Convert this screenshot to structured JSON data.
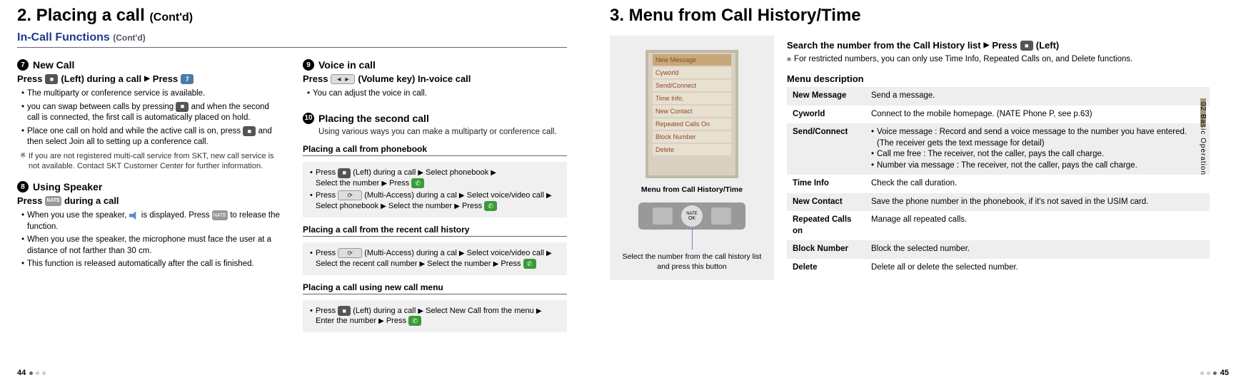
{
  "left": {
    "h2": "2. Placing a call",
    "h2cont": "(Cont'd)",
    "sub": "In-Call Functions",
    "subcont": "(Cont'd)",
    "s7": {
      "num": "7",
      "title": "New Call",
      "step_a": "Press",
      "step_b": "(Left) during a call",
      "step_c": "Press",
      "b1": "The multiparty or conference service is available.",
      "b2a": "you can swap between calls by pressing",
      "b2b": "and when the second call is connected, the first call is automatically placed on hold.",
      "b3a": "Place one call on hold and while the active call is on, press",
      "b3b": "and then select Join all to setting up a conference call.",
      "note": "If you are not registered multi-call service from SKT, new call service is not available. Contact SKT Customer Center for further information."
    },
    "s8": {
      "num": "8",
      "title": "Using Speaker",
      "step_a": "Press",
      "step_b": "during a call",
      "b1a": "When you use the speaker,",
      "b1b": "is displayed. Press",
      "b1c": "to release the function.",
      "b2": "When you use the speaker, the microphone must face the user at a distance of not farther than 30 cm.",
      "b3": "This function is released automatically after the call is finished."
    },
    "s9": {
      "num": "9",
      "title": "Voice in call",
      "step_a": "Press",
      "step_b": "(Volume key) In-voice call",
      "b1": "You can adjust the voice in call."
    },
    "s10": {
      "num": "10",
      "title": "Placing the second call",
      "light": "Using various ways you can make a multiparty or conference call.",
      "box1h": "Placing a call from phonebook",
      "box1": {
        "l1a": "Press",
        "l1b": "(Left) during a call",
        "l1c": "Select phonebook",
        "l1d": "Select the number",
        "l1e": "Press",
        "l2a": "Press",
        "l2b": "(Multi-Access) during a cal",
        "l2c": "Select voice/video call",
        "l2d": "Select phonebook",
        "l2e": "Select the number",
        "l2f": "Press"
      },
      "box2h": "Placing a call from the recent call history",
      "box2": {
        "l1a": "Press",
        "l1b": "(Multi-Access) during a cal",
        "l1c": "Select voice/video call",
        "l1d": "Select the recent call number",
        "l1e": "Select the number",
        "l1f": "Press"
      },
      "box3h": "Placing a call using new call menu",
      "box3": {
        "l1a": "Press",
        "l1b": "(Left) during a call",
        "l1c": "Select New Call from the menu",
        "l1d": "Enter the number",
        "l1e": "Press"
      }
    }
  },
  "right": {
    "h2": "3. Menu from Call History/Time",
    "img": {
      "rows": [
        "New Message",
        "Cyworld",
        "Send/Connect",
        "Time Info.",
        "New Contact",
        "Repeated Calls On",
        "Block Number",
        "Delete"
      ],
      "cap1": "Menu from Call History/Time",
      "ok": "NATE\nOK",
      "cap2": "Select the number from the call history list and press this button"
    },
    "srch_a": "Search the number from the Call History list",
    "srch_b": "Press",
    "srch_c": "(Left)",
    "restrict": "For restricted numbers, you can only use Time Info, Repeated Calls on, and Delete functions.",
    "mdesc": "Menu description",
    "table": [
      {
        "k": "New Message",
        "v": "Send a message.",
        "g": true
      },
      {
        "k": "Cyworld",
        "v": "Connect to the mobile homepage. (NATE Phone P, see p.63)",
        "g": false
      },
      {
        "k": "Send/Connect",
        "v": "",
        "g": true,
        "multi": [
          "Voice message : Record and send a voice message to the number you have entered. (The receiver gets the text message for detail)",
          "Call me free : The receiver, not the caller, pays the call charge.",
          "Number via message : The receiver, not the caller, pays the call charge."
        ]
      },
      {
        "k": "Time Info",
        "v": "Check the call duration.",
        "g": false
      },
      {
        "k": "New Contact",
        "v": "Save the phone number in the phonebook, if it's not saved in the USIM card.",
        "g": true
      },
      {
        "k": "Repeated Calls on",
        "v": "Manage all repeated calls.",
        "g": false
      },
      {
        "k": "Block Number",
        "v": "Block the selected number.",
        "g": true
      },
      {
        "k": "Delete",
        "v": "Delete all or delete the selected number.",
        "g": false
      }
    ],
    "sidetab": "02 Basic Operation"
  },
  "footer": {
    "l": "44",
    "r": "45"
  }
}
